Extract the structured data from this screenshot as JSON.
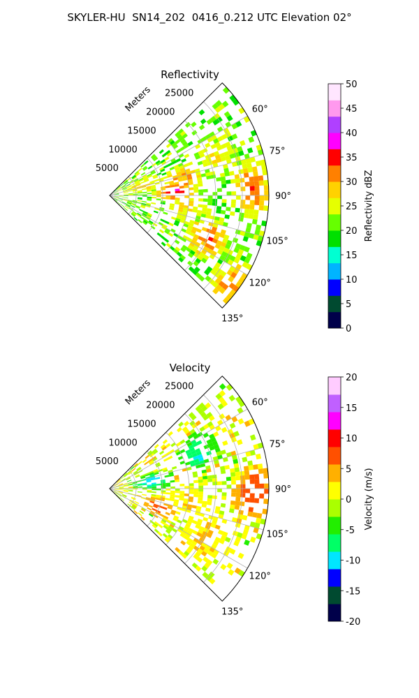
{
  "figure": {
    "title": "SKYLER-HU  SN14_202  0416_0.212 UTC Elevation 02°"
  },
  "chart_data": [
    {
      "type": "heatmap",
      "projection": "polar sector (PPI)",
      "title": "Reflectivity",
      "range_axis_label": "Meters",
      "range_ticks": [
        "5000",
        "10000",
        "15000",
        "20000",
        "25000"
      ],
      "range_max": 30000,
      "azimuth_range_deg": [
        45,
        135
      ],
      "azimuth_ticks": [
        "60°",
        "75°",
        "90°",
        "105°",
        "120°",
        "135°"
      ],
      "colorbar": {
        "label": "Reflectivity dBZ",
        "range": [
          0,
          50
        ],
        "ticks": [
          "0",
          "5",
          "10",
          "15",
          "20",
          "25",
          "30",
          "35",
          "40",
          "45",
          "50"
        ]
      },
      "features": [
        {
          "az": 70,
          "r": 21000,
          "value": 27
        },
        {
          "az": 78,
          "r": 14000,
          "value": 31
        },
        {
          "az": 86,
          "r": 12500,
          "value": 36
        },
        {
          "az": 87,
          "r": 27000,
          "value": 33
        },
        {
          "az": 99,
          "r": 14500,
          "value": 28
        },
        {
          "az": 74,
          "r": 6500,
          "value": 29
        },
        {
          "az": 113,
          "r": 20000,
          "value": 33
        },
        {
          "az": 127,
          "r": 28000,
          "value": 31
        }
      ]
    },
    {
      "type": "heatmap",
      "projection": "polar sector (PPI)",
      "title": "Velocity",
      "range_axis_label": "Meters",
      "range_ticks": [
        "5000",
        "10000",
        "15000",
        "20000",
        "25000"
      ],
      "range_max": 30000,
      "azimuth_range_deg": [
        45,
        135
      ],
      "azimuth_ticks": [
        "60°",
        "75°",
        "90°",
        "105°",
        "120°",
        "135°"
      ],
      "colorbar": {
        "label": "Velocity (m/s)",
        "range": [
          -20,
          20
        ],
        "ticks": [
          "-20",
          "-15",
          "-10",
          "-5",
          "0",
          "5",
          "10",
          "15",
          "20"
        ]
      },
      "features": [
        {
          "az": 68,
          "r": 18000,
          "value": -9
        },
        {
          "az": 80,
          "r": 8000,
          "value": -11
        },
        {
          "az": 92,
          "r": 27000,
          "value": 9
        },
        {
          "az": 100,
          "r": 15000,
          "value": 3
        },
        {
          "az": 110,
          "r": 10000,
          "value": 7
        },
        {
          "az": 117,
          "r": 20000,
          "value": 4
        }
      ]
    }
  ],
  "colors": {
    "reflectivity_stops": [
      "#00004a",
      "#004a30",
      "#0000ff",
      "#00b4ff",
      "#00ffd2",
      "#00e000",
      "#66ff00",
      "#e6ff00",
      "#ffd200",
      "#ff8000",
      "#ff0000",
      "#ff00ff",
      "#b040ff",
      "#ff99ee",
      "#ffe6ff"
    ],
    "velocity_stops": [
      "#00004a",
      "#004a30",
      "#0000ff",
      "#00e6ff",
      "#00ff66",
      "#22ee00",
      "#aaff00",
      "#ffff00",
      "#ffb000",
      "#ff5000",
      "#ff0000",
      "#ff00ff",
      "#c060ff",
      "#ffccff"
    ]
  }
}
